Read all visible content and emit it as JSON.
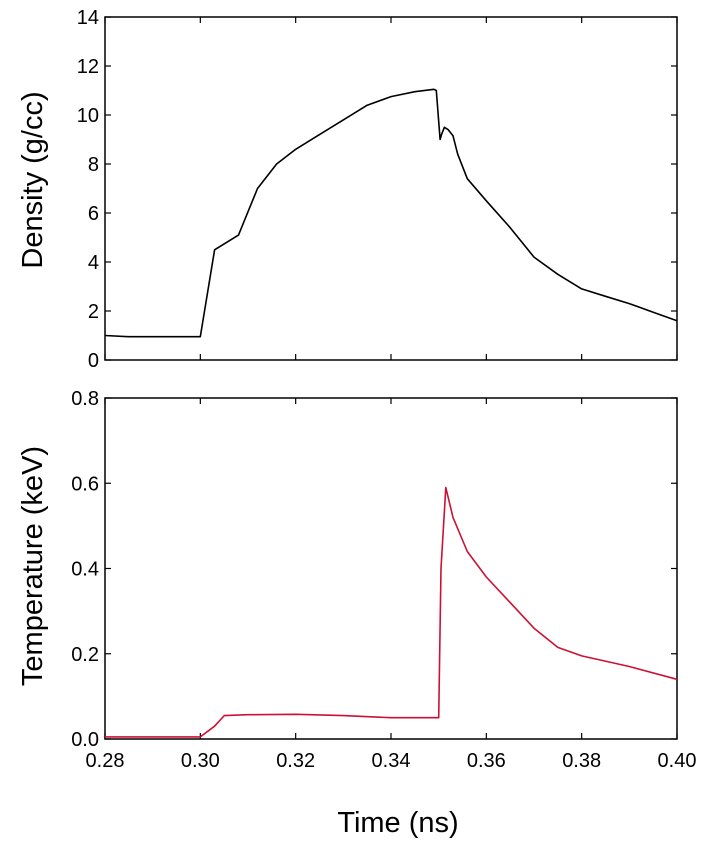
{
  "chart_data": [
    {
      "type": "line",
      "ylabel": "Density (g/cc)",
      "xlabel": "",
      "xlim": [
        0.28,
        0.4
      ],
      "ylim": [
        0,
        14
      ],
      "x_ticks": [
        "0.28",
        "0.30",
        "0.32",
        "0.34",
        "0.36",
        "0.38",
        "0.40"
      ],
      "y_ticks": [
        "0",
        "2",
        "4",
        "6",
        "8",
        "10",
        "12",
        "14"
      ],
      "x_tick_labels_visible": false,
      "grid": false,
      "series": [
        {
          "color": "#000000",
          "x": [
            0.28,
            0.285,
            0.29,
            0.295,
            0.3,
            0.303,
            0.308,
            0.312,
            0.316,
            0.32,
            0.325,
            0.33,
            0.335,
            0.34,
            0.345,
            0.349,
            0.3495,
            0.3503,
            0.3506,
            0.3512,
            0.352,
            0.353,
            0.354,
            0.356,
            0.36,
            0.365,
            0.37,
            0.375,
            0.38,
            0.385,
            0.39,
            0.395,
            0.4
          ],
          "values": [
            1.0,
            0.95,
            0.95,
            0.95,
            0.95,
            4.5,
            5.1,
            7.0,
            8.0,
            8.6,
            9.2,
            9.8,
            10.4,
            10.75,
            10.95,
            11.05,
            11.0,
            9.0,
            9.2,
            9.5,
            9.4,
            9.15,
            8.4,
            7.4,
            6.5,
            5.4,
            4.2,
            3.5,
            2.9,
            2.6,
            2.3,
            1.95,
            1.6
          ]
        }
      ]
    },
    {
      "type": "line",
      "ylabel": "Temperature (keV)",
      "xlabel": "Time (ns)",
      "xlim": [
        0.28,
        0.4
      ],
      "ylim": [
        0,
        0.8
      ],
      "x_ticks": [
        "0.28",
        "0.30",
        "0.32",
        "0.34",
        "0.36",
        "0.38",
        "0.40"
      ],
      "y_ticks": [
        "0.0",
        "0.2",
        "0.4",
        "0.6",
        "0.8"
      ],
      "grid": false,
      "series": [
        {
          "color": "#cc1133",
          "x": [
            0.28,
            0.29,
            0.3,
            0.303,
            0.305,
            0.31,
            0.32,
            0.33,
            0.34,
            0.345,
            0.35,
            0.3505,
            0.3515,
            0.353,
            0.356,
            0.36,
            0.365,
            0.37,
            0.375,
            0.38,
            0.39,
            0.4
          ],
          "values": [
            0.005,
            0.005,
            0.005,
            0.03,
            0.055,
            0.057,
            0.058,
            0.055,
            0.05,
            0.05,
            0.05,
            0.4,
            0.59,
            0.52,
            0.44,
            0.38,
            0.32,
            0.26,
            0.215,
            0.195,
            0.17,
            0.14
          ]
        }
      ]
    }
  ]
}
